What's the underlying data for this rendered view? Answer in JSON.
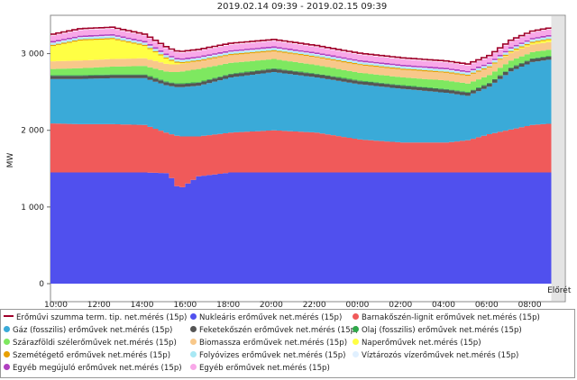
{
  "chart_data": {
    "type": "area",
    "title": "2019.02.14 09:39 - 2019.02.15 09:39",
    "ylabel": "MW",
    "ylim": [
      0,
      3500
    ],
    "yticks": [
      0,
      1000,
      2000,
      3000
    ],
    "ytick_labels": [
      "0",
      "1 000",
      "2 000",
      "3 000"
    ],
    "xlim": [
      9.75,
      33.65
    ],
    "xticks": [
      10,
      12,
      14,
      16,
      18,
      20,
      22,
      24,
      26,
      28,
      30,
      32
    ],
    "xtick_labels": [
      "10:00",
      "12:00",
      "14:00",
      "16:00",
      "18:00",
      "20:00",
      "22:00",
      "00:00",
      "02:00",
      "04:00",
      "06:00",
      "08:00"
    ],
    "forecast_label": "Előrét",
    "forecast_start": 33.0,
    "x_keypoints": [
      9.75,
      11,
      12.5,
      14,
      15.1,
      15.6,
      16.5,
      18,
      20,
      22,
      24,
      26,
      28,
      29,
      30,
      31,
      32,
      33
    ],
    "series": [
      {
        "name": "Nukleáris erőművek net.mérés (15p)",
        "color": "#5050ee",
        "values": [
          1450,
          1450,
          1450,
          1450,
          1440,
          1230,
          1400,
          1450,
          1450,
          1450,
          1450,
          1450,
          1450,
          1450,
          1450,
          1450,
          1450,
          1450
        ]
      },
      {
        "name": "Barnakőszén-lignit erőművek net.mérés (15p)",
        "color": "#f05a5a",
        "values": [
          640,
          630,
          630,
          620,
          520,
          690,
          520,
          520,
          550,
          520,
          430,
          390,
          390,
          420,
          500,
          560,
          620,
          640
        ]
      },
      {
        "name": "Gáz (fosszilis) erőművek net.mérés (15p)",
        "color": "#3aaad8",
        "values": [
          580,
          590,
          600,
          610,
          620,
          640,
          660,
          720,
          760,
          720,
          720,
          700,
          650,
          580,
          620,
          760,
          820,
          840
        ]
      },
      {
        "name": "Feketekőszén erőművek net.mérés (15p)",
        "color": "#555555",
        "values": [
          40,
          40,
          40,
          40,
          40,
          40,
          40,
          40,
          40,
          40,
          40,
          40,
          40,
          40,
          40,
          40,
          40,
          40
        ]
      },
      {
        "name": "Olaj (fosszilis) erőművek net.mérés (15p)",
        "color": "#2ea84a",
        "values": [
          10,
          10,
          10,
          10,
          10,
          10,
          10,
          10,
          10,
          10,
          10,
          10,
          10,
          10,
          10,
          10,
          10,
          10
        ]
      },
      {
        "name": "Szárazföldi szélerőművek net.mérés (15p)",
        "color": "#7ee860",
        "values": [
          80,
          90,
          100,
          110,
          130,
          150,
          170,
          140,
          120,
          110,
          100,
          100,
          110,
          110,
          100,
          90,
          80,
          80
        ]
      },
      {
        "name": "Biomassza erőművek net.mérés (15p)",
        "color": "#f8c88a",
        "values": [
          100,
          100,
          100,
          100,
          100,
          100,
          100,
          100,
          100,
          100,
          100,
          100,
          100,
          100,
          100,
          100,
          100,
          100
        ]
      },
      {
        "name": "Naperőművek net.mérés (15p)",
        "color": "#ffff44",
        "values": [
          200,
          260,
          260,
          160,
          60,
          10,
          0,
          0,
          0,
          0,
          0,
          0,
          0,
          0,
          0,
          10,
          20,
          30
        ]
      },
      {
        "name": "Szemétégető erőművek net.mérés (15p)",
        "color": "#e8a000",
        "values": [
          15,
          15,
          15,
          15,
          15,
          15,
          15,
          15,
          15,
          15,
          15,
          15,
          15,
          15,
          15,
          15,
          15,
          15
        ]
      },
      {
        "name": "Folyóvizes erőművek net.mérés (15p)",
        "color": "#a8e8f4",
        "values": [
          20,
          20,
          20,
          20,
          20,
          20,
          20,
          20,
          20,
          20,
          20,
          20,
          20,
          20,
          20,
          20,
          20,
          20
        ]
      },
      {
        "name": "Víztározós vízerőművek net.mérés (15p)",
        "color": "#e0f0ff",
        "values": [
          10,
          10,
          10,
          10,
          10,
          10,
          10,
          10,
          10,
          10,
          10,
          10,
          10,
          10,
          10,
          10,
          10,
          10
        ]
      },
      {
        "name": "Egyéb megújuló erőművek net.mérés (15p)",
        "color": "#b040c0",
        "values": [
          20,
          20,
          20,
          20,
          20,
          20,
          20,
          20,
          20,
          20,
          20,
          20,
          20,
          20,
          20,
          20,
          20,
          20
        ]
      },
      {
        "name": "Egyéb erőművek net.mérés (15p)",
        "color": "#f8a8e8",
        "values": [
          70,
          70,
          70,
          70,
          70,
          70,
          70,
          70,
          70,
          70,
          70,
          70,
          70,
          70,
          70,
          70,
          70,
          70
        ]
      }
    ],
    "total_series": {
      "name": "Erőművi szumma term. tip. net.mérés (15p)",
      "color": "#a0002a"
    }
  }
}
